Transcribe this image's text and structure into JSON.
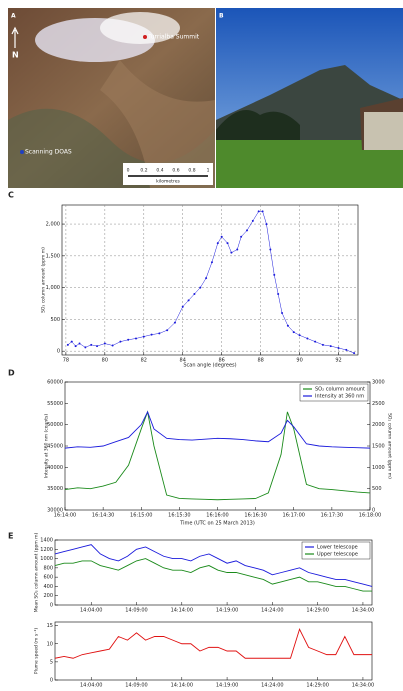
{
  "images": {
    "a": {
      "label": "A",
      "summit": "Turrialba Summit",
      "north": "N",
      "doas": "Scanning DOAS",
      "scale": [
        "0",
        "0.2",
        "0.4",
        "0.6",
        "0.8",
        "1"
      ],
      "unit": "kilometres"
    },
    "b": {
      "label": "B"
    }
  },
  "chart_data": [
    {
      "type": "line",
      "panel": "C",
      "markers": true,
      "grid": true,
      "xlabel": "Scan angle (degrees)",
      "ylabel": "SO₂ column amount (ppm m)",
      "x": [
        78.1,
        78.3,
        78.5,
        78.7,
        79.0,
        79.3,
        79.6,
        80.0,
        80.4,
        80.8,
        81.2,
        81.6,
        82.0,
        82.4,
        82.8,
        83.2,
        83.6,
        84.0,
        84.3,
        84.6,
        84.9,
        85.2,
        85.5,
        85.8,
        86.0,
        86.3,
        86.5,
        86.8,
        87.0,
        87.3,
        87.6,
        87.9,
        88.1,
        88.3,
        88.5,
        88.7,
        88.9,
        89.1,
        89.4,
        89.7,
        90.0,
        90.4,
        90.8,
        91.2,
        91.6,
        92.0,
        92.4,
        92.8
      ],
      "series": [
        {
          "color": "#1a1adc",
          "values": [
            100,
            150,
            80,
            120,
            60,
            100,
            80,
            120,
            90,
            150,
            180,
            200,
            230,
            260,
            280,
            330,
            450,
            700,
            800,
            900,
            1000,
            1150,
            1400,
            1700,
            1800,
            1700,
            1550,
            1600,
            1800,
            1900,
            2050,
            2200,
            2200,
            2000,
            1600,
            1200,
            900,
            600,
            400,
            300,
            250,
            200,
            150,
            100,
            80,
            50,
            20,
            -30
          ]
        }
      ],
      "xlim": [
        77.8,
        93
      ],
      "xticks": [
        78,
        80,
        82,
        84,
        86,
        88,
        90,
        92
      ],
      "ylim": [
        -60,
        2300
      ],
      "yticks": [
        0,
        500,
        {
          "value": 1000,
          "label": "1,000"
        },
        {
          "value": 1500,
          "label": "1,500"
        },
        {
          "value": 2000,
          "label": "2,000"
        }
      ]
    },
    {
      "type": "line",
      "panel": "D",
      "grid": false,
      "xlabel": "Time (UTC on 25 March 2013)",
      "ylabel": "Intensity at 360 nm (counts)",
      "y2label": "SO₂ column amount (ppm m)",
      "legend": "upper right",
      "x": [
        "16:14:00",
        "16:14:10",
        "16:14:20",
        "16:14:30",
        "16:14:40",
        "16:14:50",
        "16:15:00",
        "16:15:05",
        "16:15:10",
        "16:15:20",
        "16:15:30",
        "16:15:40",
        "16:15:50",
        "16:16:00",
        "16:16:10",
        "16:16:20",
        "16:16:30",
        "16:16:40",
        "16:16:50",
        "16:16:55",
        "16:17:00",
        "16:17:10",
        "16:17:20",
        "16:17:30",
        "16:17:40",
        "16:17:50",
        "16:18:00"
      ],
      "series": [
        {
          "name": "SO₂ column amount",
          "color": "#1a8a1a",
          "axis": "y2",
          "values": [
            480,
            520,
            500,
            560,
            650,
            1050,
            1900,
            2300,
            1500,
            350,
            270,
            260,
            250,
            240,
            250,
            260,
            270,
            400,
            1300,
            2300,
            1900,
            600,
            500,
            480,
            450,
            420,
            400
          ]
        },
        {
          "name": "Intensity at 360 nm",
          "color": "#1a1adc",
          "values": [
            44500,
            44800,
            44700,
            45000,
            46000,
            47000,
            50000,
            53000,
            49000,
            46800,
            46500,
            46400,
            46600,
            46800,
            46700,
            46500,
            46200,
            46000,
            48000,
            51000,
            49500,
            45500,
            45000,
            44800,
            44700,
            44600,
            44500
          ]
        }
      ],
      "xlim": [
        "16:14:00",
        "16:18:00"
      ],
      "xticks": [
        "16:14:00",
        "16:14:30",
        "16:15:00",
        "16:15:30",
        "16:16:00",
        "16:16:30",
        "16:17:00",
        "16:17:30",
        "16:18:00"
      ],
      "ylim": [
        30000,
        60000
      ],
      "yticks": [
        30000,
        35000,
        40000,
        45000,
        50000,
        55000,
        60000
      ],
      "y2lim": [
        0,
        3000
      ],
      "y2ticks": [
        0,
        500,
        1000,
        1500,
        2000,
        2500,
        3000
      ]
    },
    {
      "type": "line",
      "panel": "E",
      "grid": false,
      "ylabel": "Mean SO₂ column amount (ppm m)",
      "legend": "upper right",
      "x": [
        "14:00:00",
        "14:01:00",
        "14:02:00",
        "14:03:00",
        "14:04:00",
        "14:05:00",
        "14:06:00",
        "14:07:00",
        "14:08:00",
        "14:09:00",
        "14:10:00",
        "14:11:00",
        "14:12:00",
        "14:13:00",
        "14:14:00",
        "14:15:00",
        "14:16:00",
        "14:17:00",
        "14:18:00",
        "14:19:00",
        "14:20:00",
        "14:21:00",
        "14:22:00",
        "14:23:00",
        "14:24:00",
        "14:25:00",
        "14:26:00",
        "14:27:00",
        "14:28:00",
        "14:29:00",
        "14:30:00",
        "14:31:00",
        "14:32:00",
        "14:33:00",
        "14:34:00",
        "14:35:00"
      ],
      "series": [
        {
          "name": "Lower telescope",
          "color": "#1a1adc",
          "values": [
            1100,
            1150,
            1200,
            1250,
            1300,
            1100,
            1000,
            950,
            1050,
            1200,
            1250,
            1150,
            1050,
            1000,
            1000,
            950,
            1050,
            1100,
            1000,
            900,
            950,
            850,
            800,
            750,
            650,
            700,
            750,
            800,
            700,
            650,
            600,
            550,
            550,
            500,
            450,
            400
          ]
        },
        {
          "name": "Upper telescope",
          "color": "#1a8a1a",
          "values": [
            850,
            900,
            900,
            950,
            950,
            850,
            800,
            750,
            850,
            950,
            1000,
            900,
            800,
            750,
            750,
            700,
            800,
            850,
            750,
            700,
            700,
            650,
            600,
            550,
            450,
            500,
            550,
            600,
            500,
            500,
            450,
            400,
            400,
            350,
            300,
            300
          ]
        }
      ],
      "xlim": [
        "14:00:00",
        "14:35:00"
      ],
      "xticks": [
        "14:04:00",
        "14:09:00",
        "14:14:00",
        "14:19:00",
        "14:24:00",
        "14:29:00",
        "14:34:00"
      ],
      "ylim": [
        0,
        1400
      ],
      "yticks": [
        0,
        200,
        400,
        600,
        800,
        1000,
        1200,
        1400
      ]
    },
    {
      "type": "line",
      "grid": false,
      "ylabel": "Plume speed (m s⁻¹)",
      "x": [
        "14:00:00",
        "14:01:00",
        "14:02:00",
        "14:03:00",
        "14:04:00",
        "14:05:00",
        "14:06:00",
        "14:07:00",
        "14:08:00",
        "14:09:00",
        "14:10:00",
        "14:11:00",
        "14:12:00",
        "14:13:00",
        "14:14:00",
        "14:15:00",
        "14:16:00",
        "14:17:00",
        "14:18:00",
        "14:19:00",
        "14:20:00",
        "14:21:00",
        "14:22:00",
        "14:23:00",
        "14:24:00",
        "14:25:00",
        "14:26:00",
        "14:27:00",
        "14:28:00",
        "14:29:00",
        "14:30:00",
        "14:31:00",
        "14:32:00",
        "14:33:00",
        "14:34:00",
        "14:35:00"
      ],
      "series": [
        {
          "color": "#e01010",
          "values": [
            6,
            6.5,
            6,
            7,
            7.5,
            8,
            8.5,
            12,
            11,
            13,
            11,
            12,
            12,
            11,
            10,
            10,
            8,
            9,
            9,
            8,
            8,
            6,
            6,
            6,
            6,
            6,
            6,
            14,
            9,
            8,
            7,
            7,
            12,
            7,
            7,
            7
          ]
        }
      ],
      "xlim": [
        "14:00:00",
        "14:35:00"
      ],
      "xticks": [
        "14:04:00",
        "14:09:00",
        "14:14:00",
        "14:19:00",
        "14:24:00",
        "14:29:00",
        "14:34:00"
      ],
      "ylim": [
        0,
        16
      ],
      "yticks": [
        0,
        5,
        10,
        15
      ]
    }
  ]
}
